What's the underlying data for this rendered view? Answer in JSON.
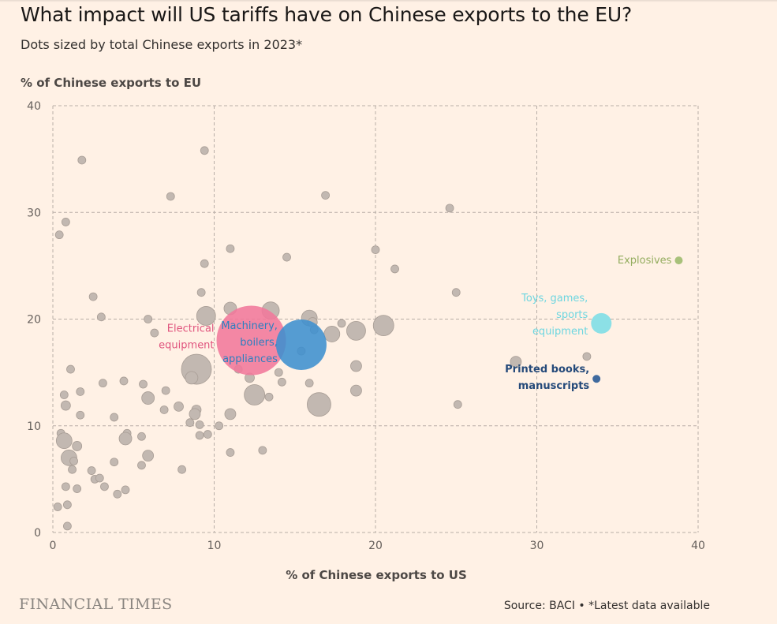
{
  "header": {
    "title": "What impact will US tariffs have on Chinese exports to the EU?",
    "subtitle": "Dots sized by total Chinese exports in 2023*"
  },
  "footer": {
    "logo": "FINANCIAL TIMES",
    "source": "Source: BACI • *Latest data available"
  },
  "colors": {
    "background": "#fff1e5",
    "dot_default": "#c2b8b1",
    "electrical": "#f1789b",
    "machinery": "#3d8fcf",
    "toys": "#8ce0e6",
    "explosives": "#a8c17a",
    "printed_books": "#3f6a9e",
    "grid": "#b8aea7"
  },
  "chart_data": {
    "type": "scatter",
    "title": "What impact will US tariffs have on Chinese exports to the EU?",
    "subtitle": "Dots sized by total Chinese exports in 2023*",
    "xlabel": "% of Chinese exports to US",
    "ylabel": "% of Chinese exports to EU",
    "xlim": [
      0,
      40
    ],
    "ylim": [
      0,
      40
    ],
    "xticks": [
      0,
      10,
      20,
      30,
      40
    ],
    "yticks": [
      0,
      10,
      20,
      30,
      40
    ],
    "grid": true,
    "size_variable": "total Chinese exports in 2023 (relative)",
    "highlighted": [
      {
        "label": "Electrical equipment",
        "label_lines": [
          "Electrical",
          "equipment"
        ],
        "x": 12.3,
        "y": 18.0,
        "size": 44,
        "color_key": "electrical"
      },
      {
        "label": "Machinery, boilers, appliances",
        "label_lines": [
          "Machinery,",
          "boilers,",
          "appliances"
        ],
        "x": 15.4,
        "y": 17.6,
        "size": 32,
        "color_key": "machinery"
      },
      {
        "label": "Toys, games, sports equipment",
        "label_lines": [
          "Toys, games,",
          "sports",
          "equipment"
        ],
        "x": 34.0,
        "y": 19.6,
        "size": 13,
        "color_key": "toys"
      },
      {
        "label": "Explosives",
        "label_lines": [
          "Explosives"
        ],
        "x": 38.8,
        "y": 25.5,
        "size": 5,
        "color_key": "explosives"
      },
      {
        "label": "Printed books, manuscripts",
        "label_lines": [
          "Printed books,",
          "manuscripts"
        ],
        "x": 33.7,
        "y": 14.4,
        "size": 5,
        "color_key": "printed_books"
      }
    ],
    "points": [
      {
        "x": 0.4,
        "y": 27.9,
        "size": 5
      },
      {
        "x": 0.8,
        "y": 29.1,
        "size": 5
      },
      {
        "x": 1.8,
        "y": 34.9,
        "size": 5
      },
      {
        "x": 9.4,
        "y": 35.8,
        "size": 5
      },
      {
        "x": 7.3,
        "y": 31.5,
        "size": 5
      },
      {
        "x": 16.9,
        "y": 31.6,
        "size": 5
      },
      {
        "x": 24.6,
        "y": 30.4,
        "size": 5
      },
      {
        "x": 11.0,
        "y": 26.6,
        "size": 5
      },
      {
        "x": 14.5,
        "y": 25.8,
        "size": 5
      },
      {
        "x": 20.0,
        "y": 26.5,
        "size": 5
      },
      {
        "x": 21.2,
        "y": 24.7,
        "size": 5
      },
      {
        "x": 9.4,
        "y": 25.2,
        "size": 5
      },
      {
        "x": 2.5,
        "y": 22.1,
        "size": 5
      },
      {
        "x": 9.2,
        "y": 22.5,
        "size": 5
      },
      {
        "x": 25.0,
        "y": 22.5,
        "size": 5
      },
      {
        "x": 3.0,
        "y": 20.2,
        "size": 5
      },
      {
        "x": 5.9,
        "y": 20.0,
        "size": 5
      },
      {
        "x": 6.3,
        "y": 18.7,
        "size": 5
      },
      {
        "x": 9.5,
        "y": 20.3,
        "size": 12
      },
      {
        "x": 11.0,
        "y": 21.0,
        "size": 8
      },
      {
        "x": 13.5,
        "y": 20.8,
        "size": 11
      },
      {
        "x": 15.9,
        "y": 20.1,
        "size": 10
      },
      {
        "x": 16.1,
        "y": 19.7,
        "size": 6
      },
      {
        "x": 17.9,
        "y": 19.6,
        "size": 5
      },
      {
        "x": 18.8,
        "y": 18.9,
        "size": 12
      },
      {
        "x": 20.5,
        "y": 19.4,
        "size": 13
      },
      {
        "x": 17.3,
        "y": 18.6,
        "size": 10
      },
      {
        "x": 16.2,
        "y": 19.0,
        "size": 5
      },
      {
        "x": 15.4,
        "y": 17.0,
        "size": 5
      },
      {
        "x": 8.9,
        "y": 15.3,
        "size": 19
      },
      {
        "x": 8.6,
        "y": 14.5,
        "size": 8
      },
      {
        "x": 11.5,
        "y": 15.3,
        "size": 5
      },
      {
        "x": 12.2,
        "y": 14.5,
        "size": 6
      },
      {
        "x": 14.0,
        "y": 15.0,
        "size": 5
      },
      {
        "x": 14.2,
        "y": 14.1,
        "size": 5
      },
      {
        "x": 15.9,
        "y": 14.0,
        "size": 5
      },
      {
        "x": 18.8,
        "y": 15.6,
        "size": 7
      },
      {
        "x": 28.7,
        "y": 16.0,
        "size": 7
      },
      {
        "x": 33.1,
        "y": 16.5,
        "size": 5
      },
      {
        "x": 1.1,
        "y": 15.3,
        "size": 5
      },
      {
        "x": 0.7,
        "y": 12.9,
        "size": 5
      },
      {
        "x": 1.7,
        "y": 13.2,
        "size": 5
      },
      {
        "x": 3.1,
        "y": 14.0,
        "size": 5
      },
      {
        "x": 4.4,
        "y": 14.2,
        "size": 5
      },
      {
        "x": 5.6,
        "y": 13.9,
        "size": 5
      },
      {
        "x": 7.0,
        "y": 13.3,
        "size": 5
      },
      {
        "x": 5.9,
        "y": 12.6,
        "size": 8
      },
      {
        "x": 0.8,
        "y": 11.9,
        "size": 6
      },
      {
        "x": 1.7,
        "y": 11.0,
        "size": 5
      },
      {
        "x": 3.8,
        "y": 10.8,
        "size": 5
      },
      {
        "x": 6.9,
        "y": 11.5,
        "size": 5
      },
      {
        "x": 7.8,
        "y": 11.8,
        "size": 6
      },
      {
        "x": 8.9,
        "y": 11.5,
        "size": 6
      },
      {
        "x": 8.8,
        "y": 11.1,
        "size": 7
      },
      {
        "x": 11.0,
        "y": 11.1,
        "size": 7
      },
      {
        "x": 12.5,
        "y": 12.9,
        "size": 13
      },
      {
        "x": 13.4,
        "y": 12.7,
        "size": 5
      },
      {
        "x": 16.5,
        "y": 12.0,
        "size": 15
      },
      {
        "x": 18.8,
        "y": 13.3,
        "size": 7
      },
      {
        "x": 25.1,
        "y": 12.0,
        "size": 5
      },
      {
        "x": 8.5,
        "y": 10.3,
        "size": 5
      },
      {
        "x": 9.1,
        "y": 10.1,
        "size": 5
      },
      {
        "x": 10.3,
        "y": 10.0,
        "size": 5
      },
      {
        "x": 9.6,
        "y": 9.2,
        "size": 5
      },
      {
        "x": 9.1,
        "y": 9.1,
        "size": 5
      },
      {
        "x": 0.5,
        "y": 9.3,
        "size": 5
      },
      {
        "x": 0.7,
        "y": 8.6,
        "size": 10
      },
      {
        "x": 1.5,
        "y": 8.1,
        "size": 6
      },
      {
        "x": 4.6,
        "y": 9.3,
        "size": 5
      },
      {
        "x": 4.5,
        "y": 8.8,
        "size": 8
      },
      {
        "x": 5.5,
        "y": 9.0,
        "size": 5
      },
      {
        "x": 1.0,
        "y": 7.0,
        "size": 10
      },
      {
        "x": 1.3,
        "y": 6.7,
        "size": 5
      },
      {
        "x": 3.8,
        "y": 6.6,
        "size": 5
      },
      {
        "x": 5.9,
        "y": 7.2,
        "size": 7
      },
      {
        "x": 5.5,
        "y": 6.3,
        "size": 5
      },
      {
        "x": 11.0,
        "y": 7.5,
        "size": 5
      },
      {
        "x": 13.0,
        "y": 7.7,
        "size": 5
      },
      {
        "x": 1.2,
        "y": 5.9,
        "size": 5
      },
      {
        "x": 2.4,
        "y": 5.8,
        "size": 5
      },
      {
        "x": 2.6,
        "y": 5.0,
        "size": 5
      },
      {
        "x": 2.9,
        "y": 5.1,
        "size": 5
      },
      {
        "x": 8.0,
        "y": 5.9,
        "size": 5
      },
      {
        "x": 0.8,
        "y": 4.3,
        "size": 5
      },
      {
        "x": 1.5,
        "y": 4.1,
        "size": 5
      },
      {
        "x": 3.2,
        "y": 4.3,
        "size": 5
      },
      {
        "x": 4.0,
        "y": 3.6,
        "size": 5
      },
      {
        "x": 4.5,
        "y": 4.0,
        "size": 5
      },
      {
        "x": 0.3,
        "y": 2.4,
        "size": 5
      },
      {
        "x": 0.9,
        "y": 2.6,
        "size": 5
      },
      {
        "x": 0.9,
        "y": 0.6,
        "size": 5
      }
    ]
  }
}
